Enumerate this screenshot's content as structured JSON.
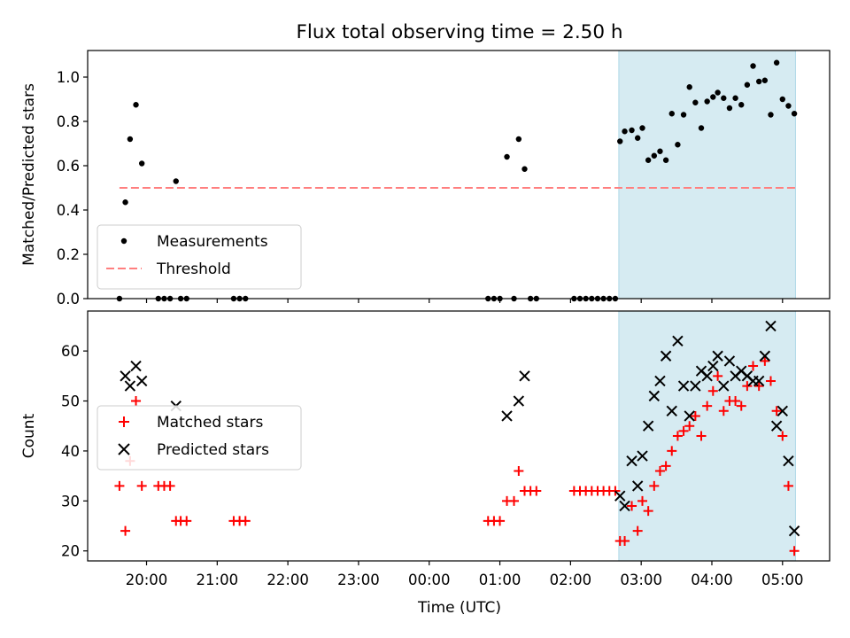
{
  "chart_data": {
    "title": "Flux total observing time = 2.50 h",
    "xlabel": "Time (UTC)",
    "x_ticks": [
      "20:00",
      "21:00",
      "22:00",
      "23:00",
      "00:00",
      "01:00",
      "02:00",
      "03:00",
      "04:00",
      "05:00"
    ],
    "highlight_span": {
      "start": "02:41",
      "end": "05:11",
      "color": "#add8e6"
    },
    "panels": [
      {
        "type": "scatter",
        "ylabel": "Matched/Predicted stars",
        "ylim": [
          0,
          1.12
        ],
        "y_ticks": [
          "0.0",
          "0.2",
          "0.4",
          "0.6",
          "0.8",
          "1.0"
        ],
        "legend_position": "lower-left",
        "threshold": {
          "name": "Threshold",
          "y": 0.5,
          "x_start": "19:37",
          "x_end": "05:11",
          "color": "#ff7f7f",
          "style": "dashed"
        },
        "series": [
          {
            "name": "Measurements",
            "color": "#000000",
            "marker": "dot",
            "points": [
              [
                "19:37",
                0.0
              ],
              [
                "19:42",
                0.435
              ],
              [
                "19:46",
                0.72
              ],
              [
                "19:51",
                0.875
              ],
              [
                "19:56",
                0.61
              ],
              [
                "20:10",
                0.0
              ],
              [
                "20:15",
                0.0
              ],
              [
                "20:20",
                0.0
              ],
              [
                "20:25",
                0.53
              ],
              [
                "20:29",
                0.0
              ],
              [
                "20:34",
                0.0
              ],
              [
                "21:14",
                0.0
              ],
              [
                "21:19",
                0.0
              ],
              [
                "21:24",
                0.0
              ],
              [
                "00:50",
                0.0
              ],
              [
                "00:55",
                0.0
              ],
              [
                "01:00",
                0.0
              ],
              [
                "01:06",
                0.64
              ],
              [
                "01:12",
                0.0
              ],
              [
                "01:16",
                0.72
              ],
              [
                "01:21",
                0.585
              ],
              [
                "01:26",
                0.0
              ],
              [
                "01:31",
                0.0
              ],
              [
                "02:03",
                0.0
              ],
              [
                "02:08",
                0.0
              ],
              [
                "02:13",
                0.0
              ],
              [
                "02:18",
                0.0
              ],
              [
                "02:23",
                0.0
              ],
              [
                "02:28",
                0.0
              ],
              [
                "02:33",
                0.0
              ],
              [
                "02:38",
                0.0
              ],
              [
                "02:42",
                0.71
              ],
              [
                "02:46",
                0.755
              ],
              [
                "02:52",
                0.76
              ],
              [
                "02:57",
                0.725
              ],
              [
                "03:01",
                0.77
              ],
              [
                "03:06",
                0.625
              ],
              [
                "03:11",
                0.645
              ],
              [
                "03:16",
                0.665
              ],
              [
                "03:21",
                0.625
              ],
              [
                "03:26",
                0.835
              ],
              [
                "03:31",
                0.695
              ],
              [
                "03:36",
                0.83
              ],
              [
                "03:41",
                0.955
              ],
              [
                "03:46",
                0.885
              ],
              [
                "03:51",
                0.77
              ],
              [
                "03:56",
                0.89
              ],
              [
                "04:01",
                0.91
              ],
              [
                "04:05",
                0.93
              ],
              [
                "04:10",
                0.905
              ],
              [
                "04:15",
                0.86
              ],
              [
                "04:20",
                0.905
              ],
              [
                "04:25",
                0.875
              ],
              [
                "04:30",
                0.965
              ],
              [
                "04:35",
                1.05
              ],
              [
                "04:40",
                0.98
              ],
              [
                "04:45",
                0.985
              ],
              [
                "04:50",
                0.83
              ],
              [
                "04:55",
                1.065
              ],
              [
                "05:00",
                0.9
              ],
              [
                "05:05",
                0.87
              ],
              [
                "05:10",
                0.835
              ]
            ]
          }
        ]
      },
      {
        "type": "scatter",
        "ylabel": "Count",
        "ylim": [
          18,
          68
        ],
        "y_ticks": [
          "20",
          "30",
          "40",
          "50",
          "60"
        ],
        "legend_position": "center-left",
        "series": [
          {
            "name": "Matched stars",
            "color": "#ff0000",
            "marker": "plus",
            "points": [
              [
                "19:37",
                33
              ],
              [
                "19:42",
                24
              ],
              [
                "19:46",
                38
              ],
              [
                "19:51",
                50
              ],
              [
                "19:56",
                33
              ],
              [
                "20:10",
                33
              ],
              [
                "20:15",
                33
              ],
              [
                "20:20",
                33
              ],
              [
                "20:25",
                26
              ],
              [
                "20:29",
                26
              ],
              [
                "20:34",
                26
              ],
              [
                "21:14",
                26
              ],
              [
                "21:19",
                26
              ],
              [
                "21:24",
                26
              ],
              [
                "00:50",
                26
              ],
              [
                "00:55",
                26
              ],
              [
                "01:00",
                26
              ],
              [
                "01:06",
                30
              ],
              [
                "01:12",
                30
              ],
              [
                "01:16",
                36
              ],
              [
                "01:21",
                32
              ],
              [
                "01:26",
                32
              ],
              [
                "01:31",
                32
              ],
              [
                "02:03",
                32
              ],
              [
                "02:08",
                32
              ],
              [
                "02:13",
                32
              ],
              [
                "02:18",
                32
              ],
              [
                "02:23",
                32
              ],
              [
                "02:28",
                32
              ],
              [
                "02:33",
                32
              ],
              [
                "02:38",
                32
              ],
              [
                "02:42",
                22
              ],
              [
                "02:46",
                22
              ],
              [
                "02:52",
                29
              ],
              [
                "02:57",
                24
              ],
              [
                "03:01",
                30
              ],
              [
                "03:06",
                28
              ],
              [
                "03:11",
                33
              ],
              [
                "03:16",
                36
              ],
              [
                "03:21",
                37
              ],
              [
                "03:26",
                40
              ],
              [
                "03:31",
                43
              ],
              [
                "03:36",
                44
              ],
              [
                "03:41",
                45
              ],
              [
                "03:46",
                47
              ],
              [
                "03:51",
                43
              ],
              [
                "03:56",
                49
              ],
              [
                "04:01",
                52
              ],
              [
                "04:05",
                55
              ],
              [
                "04:10",
                48
              ],
              [
                "04:15",
                50
              ],
              [
                "04:20",
                50
              ],
              [
                "04:25",
                49
              ],
              [
                "04:30",
                53
              ],
              [
                "04:35",
                57
              ],
              [
                "04:40",
                53
              ],
              [
                "04:45",
                58
              ],
              [
                "04:50",
                54
              ],
              [
                "04:55",
                48
              ],
              [
                "05:00",
                43
              ],
              [
                "05:05",
                33
              ],
              [
                "05:10",
                20
              ]
            ]
          },
          {
            "name": "Predicted stars",
            "color": "#000000",
            "marker": "x",
            "points": [
              [
                "19:42",
                55
              ],
              [
                "19:46",
                53
              ],
              [
                "19:51",
                57
              ],
              [
                "19:56",
                54
              ],
              [
                "20:25",
                49
              ],
              [
                "01:06",
                47
              ],
              [
                "01:16",
                50
              ],
              [
                "01:21",
                55
              ],
              [
                "02:42",
                31
              ],
              [
                "02:46",
                29
              ],
              [
                "02:52",
                38
              ],
              [
                "02:57",
                33
              ],
              [
                "03:01",
                39
              ],
              [
                "03:06",
                45
              ],
              [
                "03:11",
                51
              ],
              [
                "03:16",
                54
              ],
              [
                "03:21",
                59
              ],
              [
                "03:26",
                48
              ],
              [
                "03:31",
                62
              ],
              [
                "03:36",
                53
              ],
              [
                "03:41",
                47
              ],
              [
                "03:46",
                53
              ],
              [
                "03:51",
                56
              ],
              [
                "03:56",
                55
              ],
              [
                "04:01",
                57
              ],
              [
                "04:05",
                59
              ],
              [
                "04:10",
                53
              ],
              [
                "04:15",
                58
              ],
              [
                "04:20",
                55
              ],
              [
                "04:25",
                56
              ],
              [
                "04:30",
                55
              ],
              [
                "04:35",
                54
              ],
              [
                "04:40",
                54
              ],
              [
                "04:45",
                59
              ],
              [
                "04:50",
                65
              ],
              [
                "04:55",
                45
              ],
              [
                "05:00",
                48
              ],
              [
                "05:05",
                38
              ],
              [
                "05:10",
                24
              ]
            ]
          }
        ]
      }
    ]
  }
}
